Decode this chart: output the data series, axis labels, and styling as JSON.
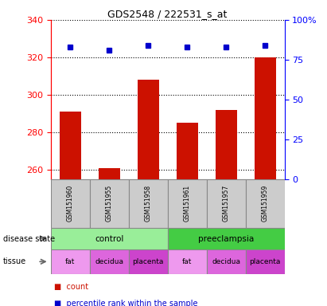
{
  "title": "GDS2548 / 222531_s_at",
  "samples": [
    "GSM151960",
    "GSM151955",
    "GSM151958",
    "GSM151961",
    "GSM151957",
    "GSM151959"
  ],
  "count_values": [
    291,
    261,
    308,
    285,
    292,
    320
  ],
  "percentile_values": [
    83,
    81,
    84,
    83,
    83,
    84
  ],
  "ylim_left": [
    255,
    340
  ],
  "ylim_right": [
    0,
    100
  ],
  "yticks_left": [
    260,
    280,
    300,
    320,
    340
  ],
  "yticks_right": [
    0,
    25,
    50,
    75,
    100
  ],
  "bar_color": "#cc1100",
  "marker_color": "#0000cc",
  "disease_state": [
    {
      "label": "control",
      "span": [
        0,
        3
      ],
      "color": "#99ee99"
    },
    {
      "label": "preeclampsia",
      "span": [
        3,
        6
      ],
      "color": "#44cc44"
    }
  ],
  "tissue": [
    {
      "label": "fat",
      "span": [
        0,
        1
      ],
      "color": "#ee99ee"
    },
    {
      "label": "decidua",
      "span": [
        1,
        2
      ],
      "color": "#dd66dd"
    },
    {
      "label": "placenta",
      "span": [
        2,
        3
      ],
      "color": "#cc44cc"
    },
    {
      "label": "fat",
      "span": [
        3,
        4
      ],
      "color": "#ee99ee"
    },
    {
      "label": "decidua",
      "span": [
        4,
        5
      ],
      "color": "#dd66dd"
    },
    {
      "label": "placenta",
      "span": [
        5,
        6
      ],
      "color": "#cc44cc"
    }
  ]
}
